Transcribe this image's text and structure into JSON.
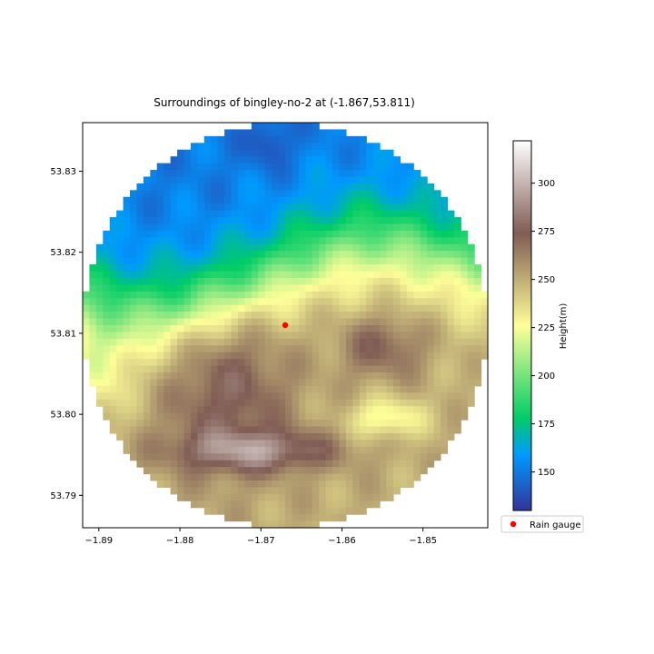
{
  "chart_data": {
    "type": "heatmap",
    "title": "Surroundings of bingley-no-2 at (-1.867,53.811)",
    "xlabel": "",
    "ylabel": "",
    "xlim": [
      -1.892,
      -1.842
    ],
    "ylim": [
      53.786,
      53.836
    ],
    "xticks": [
      -1.89,
      -1.88,
      -1.87,
      -1.86,
      -1.85
    ],
    "xtick_labels": [
      "−1.89",
      "−1.88",
      "−1.87",
      "−1.86",
      "−1.85"
    ],
    "yticks": [
      53.79,
      53.8,
      53.81,
      53.82,
      53.83
    ],
    "ytick_labels": [
      "53.79",
      "53.80",
      "53.81",
      "53.82",
      "53.83"
    ],
    "grid": false,
    "colormap": "terrain",
    "colorbar": {
      "label": "Height(m)",
      "range": [
        130,
        322
      ],
      "ticks": [
        150,
        175,
        200,
        225,
        250,
        275,
        300
      ],
      "tick_labels": [
        "150",
        "175",
        "200",
        "225",
        "250",
        "275",
        "300"
      ]
    },
    "grid_cells": 60,
    "region": "circle",
    "gauge": {
      "name": "Rain gauge",
      "x": -1.867,
      "y": 53.811,
      "color": "#ff0000"
    },
    "legend": {
      "placement": "lower-right-outside",
      "entries": [
        "Rain gauge"
      ]
    }
  }
}
